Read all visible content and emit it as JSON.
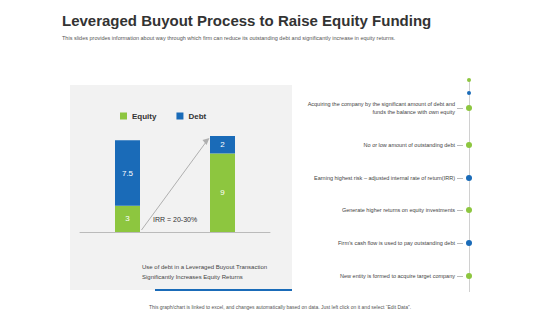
{
  "title": "Leveraged Buyout Process to Raise Equity Funding",
  "subtitle": "This slides provides information about way through which  firm can reduce its outstanding debt and significantly increase in equity returns.",
  "chart_data": {
    "type": "bar",
    "stacked": true,
    "data_labels": true,
    "grid": false,
    "tick_labels": false,
    "legend": "top",
    "categories": [
      null,
      null
    ],
    "series": [
      {
        "name": "Equity",
        "color": "#8dc63f",
        "values": [
          3,
          9
        ]
      },
      {
        "name": "Debt",
        "color": "#1a6bb8",
        "values": [
          7.5,
          2
        ]
      }
    ],
    "ylim": [
      0,
      11
    ],
    "yticks": [
      0,
      11
    ],
    "annotation": "IRR = 20-30%"
  },
  "caption": [
    "Use of debt in a Leveraged Buyout Transaction",
    "Significantly Increases Equity Returns"
  ],
  "points": [
    {
      "text": [
        "Acquiring the company by the significant amount of debt and",
        "funds the balance with own equity"
      ],
      "color": "#8dc63f"
    },
    {
      "text": [
        "No or low amount of outstanding debt"
      ],
      "color": "#8dc63f"
    },
    {
      "text": [
        "Earning highest risk – adjusted internal rate of return(IRR)"
      ],
      "color": "#1a6bb8"
    },
    {
      "text": [
        "Generate higher returns on equity investments"
      ],
      "color": "#8dc63f"
    },
    {
      "text": [
        "Firm’s cash flow is used to pay outstanding debt"
      ],
      "color": "#1a6bb8"
    },
    {
      "text": [
        "New entity is formed to acquire target company"
      ],
      "color": "#8dc63f"
    }
  ],
  "footer": "This graph/chart is linked to excel, and changes automatically based on data. Just left click on it and select “Edit Data”."
}
